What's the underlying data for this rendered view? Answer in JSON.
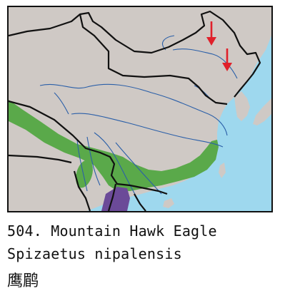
{
  "map": {
    "colors": {
      "sea": "#9ed8ee",
      "land": "#cfc9c5",
      "border": "#111111",
      "river": "#2b5fa8",
      "range_resident": "#5aa94a",
      "range_winter": "#6b4a98",
      "migration_arrow": "#e0202a"
    }
  },
  "caption": {
    "title": "504. Mountain Hawk Eagle",
    "scientific_name": "Spizaetus nipalensis",
    "chinese_name": "鹰鹛"
  }
}
